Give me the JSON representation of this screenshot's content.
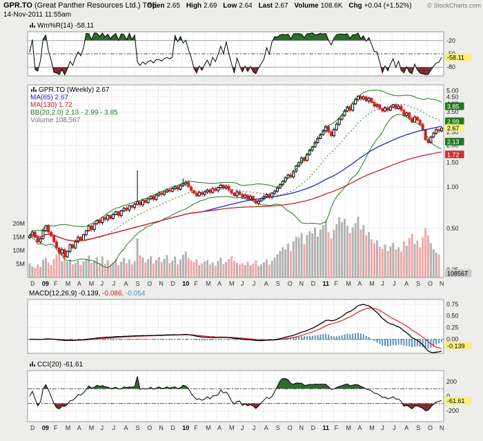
{
  "header": {
    "symbol": "GPR.TO",
    "company": "(Great Panther Resources Ltd.)",
    "exchange": "TSE",
    "datetime": "14-Nov-2011 11:55am",
    "copyright": "© StockCharts.com",
    "quote": {
      "open_label": "Open",
      "open": "2.65",
      "high_label": "High",
      "high": "2.69",
      "low_label": "Low",
      "low": "2.64",
      "last_label": "Last",
      "last": "2.67",
      "volume_label": "Volume",
      "volume": "108.6K",
      "chg_label": "Chg",
      "chg": "+0.04 (+1.52%)"
    }
  },
  "panels": {
    "wmr": {
      "legend": "Wm%R(14) -58.11"
    },
    "main": {
      "legend_symbol": "GPR.TO (Weekly) 2.67",
      "legend_ma65": "MA(65) 2.67",
      "legend_ma130": "MA(130) 1.72",
      "legend_bb": "BB(20,2.0) 2.13 - 2.99 - 3.85",
      "legend_volume": "Volume 108,567"
    },
    "macd": {
      "label": "MACD(12,26,9)",
      "macd_value": "-0.139,",
      "signal_value": "-0.086,",
      "hist_value": "-0.054"
    },
    "cci": {
      "legend": "CCI(20) -61.61"
    }
  },
  "axes": {
    "price_ticks": [
      "5.00",
      "4.50",
      "4.00",
      "3.50",
      "2.50",
      "2.00",
      "1.50",
      "1.00",
      "0.50",
      "0.25"
    ],
    "price_grid": [
      5.0,
      4.5,
      4.0,
      3.5,
      3.0,
      2.5,
      2.0,
      1.5,
      1.0,
      0.5,
      0.25
    ],
    "volume_ticks": [
      "20M",
      "15M",
      "10M",
      "5M"
    ],
    "wmr_ticks": [
      "-20",
      "-50",
      "-80"
    ],
    "macd_ticks": [
      "0.75",
      "0.50",
      "0.25",
      "0.00"
    ],
    "cci_ticks": [
      "200",
      "0",
      "-200"
    ],
    "badges": [
      {
        "text": "-58.11",
        "axis": "wmr",
        "style": "yellow"
      },
      {
        "text": "3.85",
        "axis": "price",
        "style": "green"
      },
      {
        "text": "2.99",
        "axis": "price",
        "style": "green"
      },
      {
        "text": "2.67",
        "axis": "price",
        "style": "yellow"
      },
      {
        "text": "2.13",
        "axis": "price",
        "style": "green"
      },
      {
        "text": "1.72",
        "axis": "price",
        "style": "red"
      },
      {
        "text": "108567",
        "axis": "volume_bottom",
        "style": "gray"
      },
      {
        "text": "-0.139",
        "axis": "macd",
        "style": "yellow"
      },
      {
        "text": "-61.61",
        "axis": "cci",
        "style": "yellow"
      }
    ]
  },
  "xaxis": {
    "labels": [
      {
        "t": "D",
        "yr": false
      },
      {
        "t": "09",
        "yr": true
      },
      {
        "t": "F",
        "yr": false
      },
      {
        "t": "M",
        "yr": false
      },
      {
        "t": "A",
        "yr": false
      },
      {
        "t": "M",
        "yr": false
      },
      {
        "t": "J",
        "yr": false
      },
      {
        "t": "J",
        "yr": false
      },
      {
        "t": "A",
        "yr": false
      },
      {
        "t": "S",
        "yr": false
      },
      {
        "t": "O",
        "yr": false
      },
      {
        "t": "N",
        "yr": false
      },
      {
        "t": "D",
        "yr": false
      },
      {
        "t": "10",
        "yr": true
      },
      {
        "t": "F",
        "yr": false
      },
      {
        "t": "M",
        "yr": false
      },
      {
        "t": "A",
        "yr": false
      },
      {
        "t": "M",
        "yr": false
      },
      {
        "t": "J",
        "yr": false
      },
      {
        "t": "J",
        "yr": false
      },
      {
        "t": "A",
        "yr": false
      },
      {
        "t": "S",
        "yr": false
      },
      {
        "t": "O",
        "yr": false
      },
      {
        "t": "N",
        "yr": false
      },
      {
        "t": "D",
        "yr": false
      },
      {
        "t": "11",
        "yr": true
      },
      {
        "t": "F",
        "yr": false
      },
      {
        "t": "M",
        "yr": false
      },
      {
        "t": "A",
        "yr": false
      },
      {
        "t": "M",
        "yr": false
      },
      {
        "t": "J",
        "yr": false
      },
      {
        "t": "J",
        "yr": false
      },
      {
        "t": "A",
        "yr": false
      },
      {
        "t": "S",
        "yr": false
      },
      {
        "t": "O",
        "yr": false
      },
      {
        "t": "N",
        "yr": false
      }
    ]
  },
  "colors": {
    "up": "#000000",
    "down": "#dd2222",
    "ma65": "#2222cc",
    "ma130": "#cc2222",
    "bb": "#1f7a1f",
    "volume_up": "#b3b3b3",
    "volume_down": "#f0a8a8",
    "hist": "#5590c0",
    "signal": "#dd2222",
    "fill_green": "#2d6b2d",
    "fill_maroon": "#7c2f2f",
    "badge_yellow": "#f5f17a",
    "badge_green": "#1f7a1f",
    "badge_red": "#cc3333",
    "badge_gray": "#c8c8c8"
  },
  "chart_data": {
    "type": "candlestick",
    "timeframe": "weekly",
    "symbol": "GPR.TO",
    "title": "GPR.TO (Weekly) 2.67",
    "log_scale": true,
    "price_axis": {
      "min": 0.22,
      "max": 5.5
    },
    "x_range": "Dec-2008 to 14-Nov-2011",
    "quote": {
      "open": 2.65,
      "high": 2.69,
      "low": 2.64,
      "last": 2.67,
      "volume": 108600,
      "change": 0.04,
      "change_pct": 1.52
    },
    "indicators": {
      "wmr": {
        "name": "Williams %R",
        "period": 14,
        "value": -58.11
      },
      "ma65": {
        "name": "SMA",
        "period": 65,
        "value": 2.67
      },
      "ma130": {
        "name": "SMA",
        "period": 130,
        "value": 1.72
      },
      "bb": {
        "name": "Bollinger Bands",
        "period": 20,
        "stdev": 2.0,
        "lower": 2.13,
        "middle": 2.99,
        "upper": 3.85
      },
      "volume": {
        "current": 108567
      },
      "macd": {
        "fast": 12,
        "slow": 26,
        "signal_period": 9,
        "macd": -0.139,
        "signal": -0.086,
        "hist": -0.054
      },
      "cci": {
        "name": "CCI",
        "period": 20,
        "value": -61.61
      }
    },
    "close": [
      0.44,
      0.47,
      0.43,
      0.4,
      0.42,
      0.48,
      0.52,
      0.47,
      0.44,
      0.4,
      0.36,
      0.33,
      0.35,
      0.31,
      0.34,
      0.38,
      0.36,
      0.4,
      0.43,
      0.41,
      0.45,
      0.48,
      0.52,
      0.49,
      0.54,
      0.57,
      0.55,
      0.6,
      0.58,
      0.62,
      0.59,
      0.63,
      0.66,
      0.62,
      0.67,
      0.7,
      0.68,
      0.73,
      0.71,
      0.75,
      0.78,
      0.74,
      0.8,
      0.77,
      0.82,
      0.85,
      0.81,
      0.87,
      0.9,
      0.88,
      0.92,
      0.95,
      0.93,
      0.97,
      1.0,
      0.96,
      1.02,
      1.05,
      1.08,
      1.0,
      0.94,
      0.9,
      0.86,
      0.91,
      0.88,
      0.92,
      0.95,
      0.91,
      0.97,
      0.94,
      0.99,
      1.03,
      0.98,
      1.01,
      0.95,
      0.9,
      0.86,
      0.92,
      0.88,
      0.84,
      0.87,
      0.82,
      0.85,
      0.8,
      0.76,
      0.79,
      0.82,
      0.85,
      0.88,
      0.84,
      0.9,
      0.93,
      0.98,
      1.04,
      1.1,
      1.16,
      1.22,
      1.18,
      1.3,
      1.42,
      1.5,
      1.62,
      1.55,
      1.72,
      1.85,
      1.95,
      2.1,
      2.25,
      2.4,
      2.55,
      2.75,
      2.5,
      2.35,
      2.6,
      2.85,
      3.1,
      3.3,
      3.55,
      3.8,
      3.6,
      4.0,
      4.3,
      4.55,
      4.35,
      4.5,
      4.2,
      4.4,
      4.1,
      3.85,
      3.95,
      3.7,
      3.55,
      3.75,
      3.6,
      3.8,
      3.95,
      3.7,
      3.85,
      3.6,
      3.3,
      3.45,
      3.15,
      2.95,
      3.2,
      3.05,
      2.85,
      2.6,
      2.2,
      2.1,
      2.3,
      2.45,
      2.6,
      2.55,
      2.67
    ],
    "volume_millions": [
      5.2,
      4.1,
      3.6,
      4.8,
      3.9,
      6.5,
      7.2,
      5.5,
      4.6,
      6.8,
      8.5,
      9.2,
      6.1,
      7.4,
      5.8,
      6.6,
      4.9,
      5.3,
      6.2,
      4.7,
      5.9,
      6.8,
      8.1,
      5.4,
      6.3,
      7.5,
      5.2,
      7.8,
      5.1,
      6.4,
      4.8,
      5.6,
      6.9,
      4.5,
      5.8,
      7.2,
      5.3,
      6.7,
      4.9,
      6.1,
      14.5,
      8.2,
      7.4,
      5.6,
      6.8,
      7.9,
      5.2,
      6.4,
      7.6,
      5.8,
      6.9,
      8.3,
      5.4,
      6.2,
      7.8,
      4.9,
      6.6,
      8.4,
      9.6,
      7.1,
      6.3,
      5.7,
      6.8,
      4.6,
      5.2,
      5.9,
      6.4,
      4.8,
      5.6,
      4.3,
      6.1,
      7.3,
      5.0,
      5.7,
      6.9,
      7.8,
      6.2,
      5.4,
      4.8,
      5.3,
      4.6,
      5.8,
      4.4,
      5.1,
      6.3,
      4.2,
      4.9,
      5.6,
      6.7,
      4.8,
      6.2,
      7.4,
      8.6,
      9.8,
      11.2,
      10.4,
      12.6,
      9.8,
      13.4,
      15.2,
      14.8,
      16.5,
      12.3,
      15.8,
      17.2,
      16.4,
      18.6,
      15.2,
      17.8,
      19.4,
      21.2,
      16.8,
      14.5,
      17.6,
      19.8,
      22.4,
      20.6,
      21.8,
      19.2,
      16.4,
      18.6,
      20.2,
      22.6,
      17.8,
      19.4,
      15.6,
      16.8,
      14.2,
      12.6,
      13.8,
      11.4,
      10.6,
      12.2,
      9.8,
      11.6,
      12.8,
      10.4,
      11.2,
      9.6,
      13.4,
      11.8,
      14.6,
      16.2,
      12.4,
      13.6,
      11.2,
      14.8,
      18.4,
      15.6,
      12.8,
      10.4,
      9.2,
      8.6,
      0.11
    ],
    "spikes": [
      {
        "index": 40,
        "high": 1.32
      },
      {
        "index": 57,
        "high": 1.15
      }
    ]
  }
}
